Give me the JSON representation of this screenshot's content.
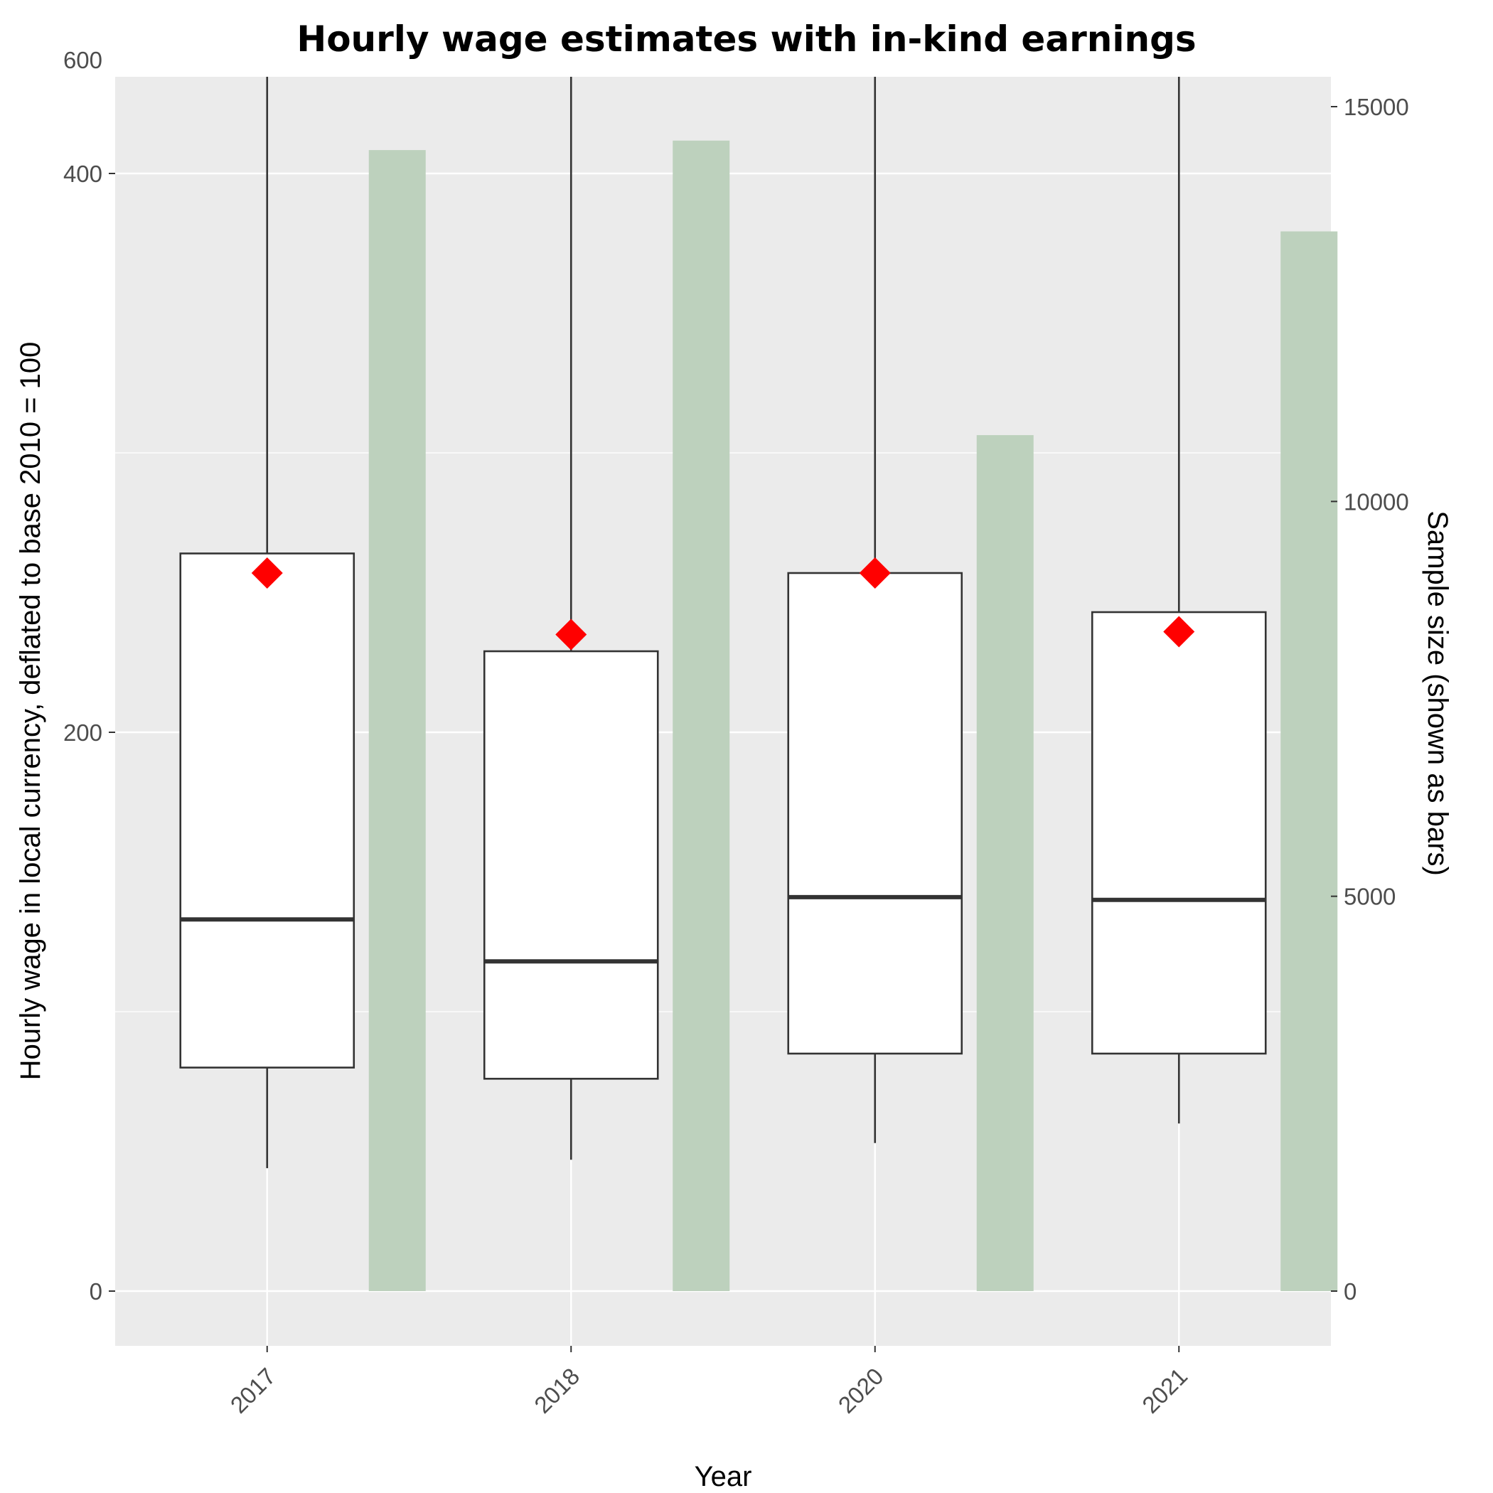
{
  "chart_data": {
    "type": "boxplot",
    "title": "Hourly wage estimates with in-kind earnings",
    "xlabel": "Year",
    "ylabel": "Hourly wage in local currency, deflated to base 2010 = 100",
    "y2label": "Sample size (shown as bars)",
    "categories": [
      "2017",
      "2018",
      "2020",
      "2021"
    ],
    "ylim": [
      -30,
      600
    ],
    "y_ticks": [
      0,
      200,
      400,
      600
    ],
    "y2lim": [
      -750,
      15600
    ],
    "y2_ticks": [
      0,
      5000,
      10000,
      15000
    ],
    "grid": true,
    "series": [
      {
        "kind": "box",
        "boxes": [
          {
            "category": "2017",
            "whisker_low": 44,
            "q1": 80,
            "median": 133,
            "q3": 264,
            "whisker_high": 590
          },
          {
            "category": "2018",
            "whisker_low": 47,
            "q1": 76,
            "median": 118,
            "q3": 229,
            "whisker_high": 549
          },
          {
            "category": "2020",
            "whisker_low": 53,
            "q1": 85,
            "median": 141,
            "q3": 257,
            "whisker_high": 565
          },
          {
            "category": "2021",
            "whisker_low": 60,
            "q1": 85,
            "median": 140,
            "q3": 243,
            "whisker_high": 530
          }
        ]
      },
      {
        "kind": "mean",
        "marker": "diamond",
        "color": "#ff0000",
        "values": [
          257,
          235,
          257,
          236
        ]
      },
      {
        "kind": "bar",
        "axis": "secondary",
        "color": "#bdd1bd",
        "values": [
          14450,
          14570,
          10840,
          13420
        ]
      }
    ]
  },
  "colors": {
    "panel_background": "#ebebeb",
    "gridline": "#ffffff",
    "box_stroke": "#333333",
    "box_fill": "#ffffff",
    "mean_marker": "#ff0000",
    "bar_fill": "#bdd1bd"
  }
}
